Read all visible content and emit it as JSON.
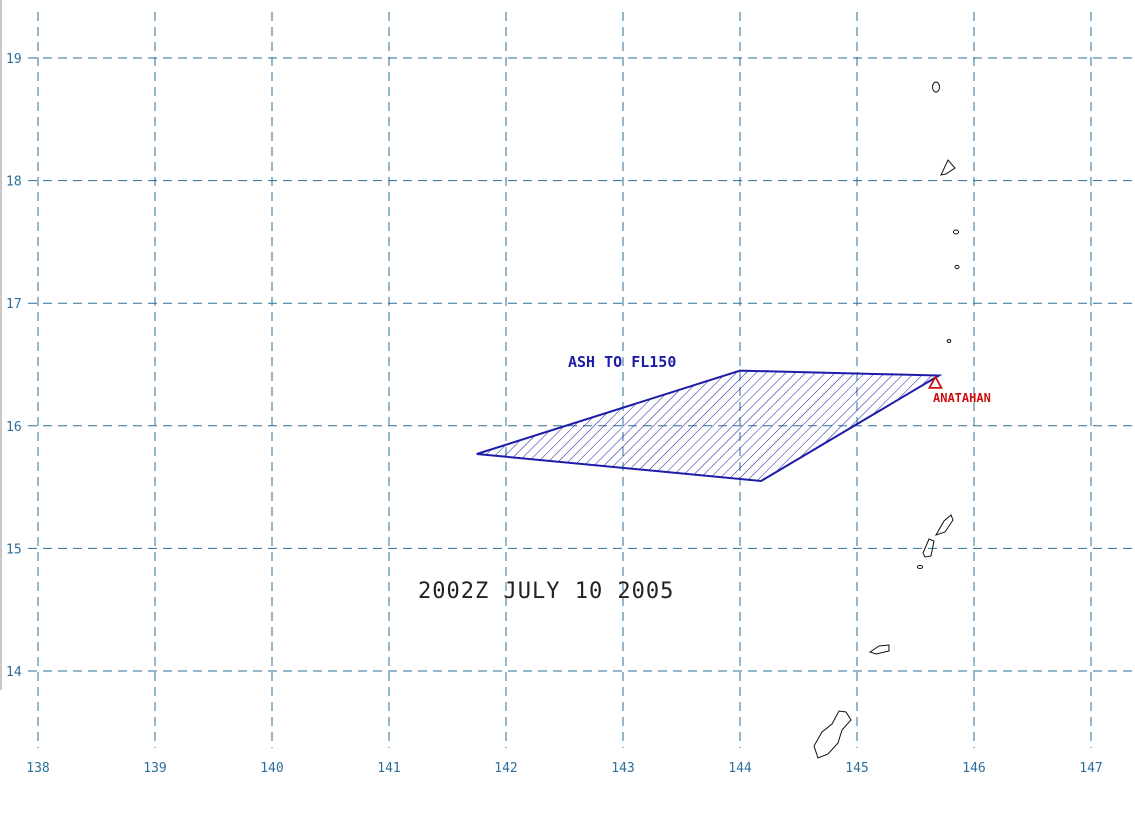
{
  "map": {
    "timestamp": "2002Z  JULY 10 2005",
    "longitudes": [
      138,
      139,
      140,
      141,
      142,
      143,
      144,
      145,
      146,
      147
    ],
    "latitudes": [
      19,
      18,
      17,
      16,
      15,
      14
    ],
    "plume": {
      "label": "ASH TO FL150",
      "color": "#1c1ca8",
      "polygon": [
        [
          141.75,
          15.77
        ],
        [
          144.0,
          16.45
        ],
        [
          145.7,
          16.41
        ],
        [
          144.18,
          15.55
        ]
      ]
    },
    "volcano": {
      "name": "ANATAHAN",
      "lon": 145.67,
      "lat": 16.35,
      "color": "#cc1010",
      "icon": "triangle-icon"
    }
  }
}
